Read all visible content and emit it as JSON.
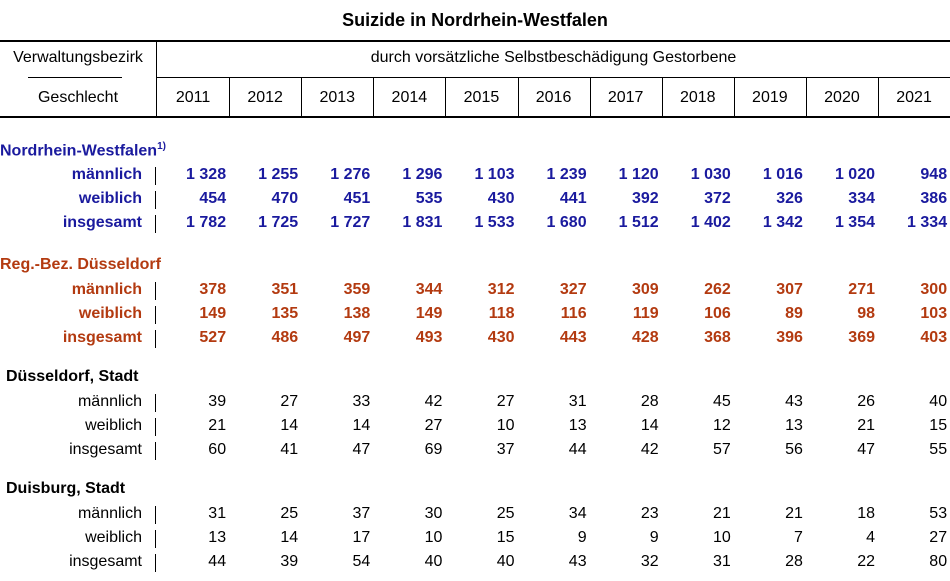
{
  "title": "Suizide in Nordrhein-Westfalen",
  "header": {
    "col1_top": "Verwaltungsbezirk",
    "col1_bottom": "Geschlecht",
    "span_label": "durch vorsätzliche Selbstbeschädigung Gestorbene",
    "years": [
      "2011",
      "2012",
      "2013",
      "2014",
      "2015",
      "2016",
      "2017",
      "2018",
      "2019",
      "2020",
      "2021"
    ]
  },
  "sections": [
    {
      "name": "Nordrhein-Westfalen",
      "footnote": "1)",
      "style": "nrw",
      "rows": [
        {
          "label": "männlich",
          "values": [
            "1 328",
            "1 255",
            "1 276",
            "1 296",
            "1 103",
            "1 239",
            "1 120",
            "1 030",
            "1 016",
            "1 020",
            "948"
          ]
        },
        {
          "label": "weiblich",
          "values": [
            "454",
            "470",
            "451",
            "535",
            "430",
            "441",
            "392",
            "372",
            "326",
            "334",
            "386"
          ]
        },
        {
          "label": "insgesamt",
          "values": [
            "1 782",
            "1 725",
            "1 727",
            "1 831",
            "1 533",
            "1 680",
            "1 512",
            "1 402",
            "1 342",
            "1 354",
            "1 334"
          ]
        }
      ]
    },
    {
      "name": "Reg.-Bez. Düsseldorf",
      "footnote": "",
      "style": "dus",
      "rows": [
        {
          "label": "männlich",
          "values": [
            "378",
            "351",
            "359",
            "344",
            "312",
            "327",
            "309",
            "262",
            "307",
            "271",
            "300"
          ]
        },
        {
          "label": "weiblich",
          "values": [
            "149",
            "135",
            "138",
            "149",
            "118",
            "116",
            "119",
            "106",
            "89",
            "98",
            "103"
          ]
        },
        {
          "label": "insgesamt",
          "values": [
            "527",
            "486",
            "497",
            "493",
            "430",
            "443",
            "428",
            "368",
            "396",
            "369",
            "403"
          ]
        }
      ]
    },
    {
      "name": "Düsseldorf, Stadt",
      "footnote": "",
      "style": "plain",
      "rows": [
        {
          "label": "männlich",
          "values": [
            "39",
            "27",
            "33",
            "42",
            "27",
            "31",
            "28",
            "45",
            "43",
            "26",
            "40"
          ]
        },
        {
          "label": "weiblich",
          "values": [
            "21",
            "14",
            "14",
            "27",
            "10",
            "13",
            "14",
            "12",
            "13",
            "21",
            "15"
          ]
        },
        {
          "label": "insgesamt",
          "values": [
            "60",
            "41",
            "47",
            "69",
            "37",
            "44",
            "42",
            "57",
            "56",
            "47",
            "55"
          ]
        }
      ]
    },
    {
      "name": "Duisburg, Stadt",
      "footnote": "",
      "style": "plain",
      "rows": [
        {
          "label": "männlich",
          "values": [
            "31",
            "25",
            "37",
            "30",
            "25",
            "34",
            "23",
            "21",
            "21",
            "18",
            "53"
          ]
        },
        {
          "label": "weiblich",
          "values": [
            "13",
            "14",
            "17",
            "10",
            "15",
            "9",
            "9",
            "10",
            "7",
            "4",
            "27"
          ]
        },
        {
          "label": "insgesamt",
          "values": [
            "44",
            "39",
            "54",
            "40",
            "40",
            "43",
            "32",
            "31",
            "28",
            "22",
            "80"
          ]
        }
      ]
    }
  ]
}
